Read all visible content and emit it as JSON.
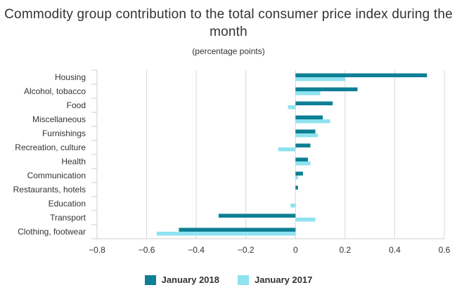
{
  "chart_data": {
    "type": "bar",
    "orientation": "horizontal",
    "title": "Commodity group contribution to the total consumer price index during the month",
    "subtitle": "(percentage points)",
    "categories": [
      "Housing",
      "Alcohol, tobacco",
      "Food",
      "Miscellaneous",
      "Furnishings",
      "Recreation, culture",
      "Health",
      "Communication",
      "Restaurants, hotels",
      "Education",
      "Transport",
      "Clothing, footwear"
    ],
    "series": [
      {
        "name": "January 2018",
        "color": "#0e7f94",
        "values": [
          0.53,
          0.25,
          0.15,
          0.11,
          0.08,
          0.06,
          0.05,
          0.03,
          0.01,
          0.0,
          -0.31,
          -0.47
        ]
      },
      {
        "name": "January 2017",
        "color": "#8fe2ef",
        "values": [
          0.2,
          0.1,
          -0.03,
          0.14,
          0.09,
          -0.07,
          0.06,
          0.01,
          0.0,
          -0.02,
          0.08,
          -0.56
        ]
      }
    ],
    "xlim": [
      -0.8,
      0.6
    ],
    "xticks": [
      "−0.8",
      "−0.6",
      "−0.4",
      "−0.2",
      "0",
      "0.2",
      "0.4",
      "0.6"
    ],
    "xtick_values": [
      -0.8,
      -0.6,
      -0.4,
      -0.2,
      0,
      0.2,
      0.4,
      0.6
    ],
    "grid": true,
    "legend_position": "bottom"
  }
}
